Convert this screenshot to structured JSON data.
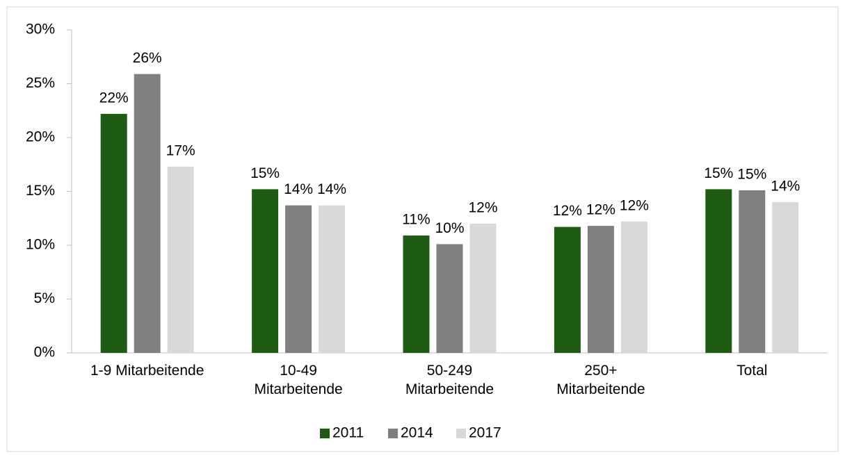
{
  "chart_data": {
    "type": "bar",
    "categories": [
      "1-9 Mitarbeitende",
      "10-49\nMitarbeitende",
      "50-249\nMitarbeitende",
      "250+\nMitarbeitende",
      "Total"
    ],
    "series": [
      {
        "name": "2011",
        "color": "#1e5c14",
        "values": [
          22.2,
          15.2,
          10.9,
          11.7,
          15.2
        ],
        "value_labels": [
          "22%",
          "15%",
          "11%",
          "12%",
          "15%"
        ]
      },
      {
        "name": "2014",
        "color": "#808080",
        "values": [
          25.9,
          13.7,
          10.1,
          11.8,
          15.1
        ],
        "value_labels": [
          "26%",
          "14%",
          "10%",
          "12%",
          "15%"
        ]
      },
      {
        "name": "2017",
        "color": "#d9d9d9",
        "values": [
          17.3,
          13.7,
          12.0,
          12.2,
          14.0
        ],
        "value_labels": [
          "17%",
          "14%",
          "12%",
          "12%",
          "14%"
        ]
      }
    ],
    "ylim": [
      0,
      30
    ],
    "yticks": [
      {
        "value": 0,
        "label": "0%"
      },
      {
        "value": 5,
        "label": "5%"
      },
      {
        "value": 10,
        "label": "10%"
      },
      {
        "value": 15,
        "label": "15%"
      },
      {
        "value": 20,
        "label": "20%"
      },
      {
        "value": 25,
        "label": "25%"
      },
      {
        "value": 30,
        "label": "30%"
      }
    ],
    "legend": "bottom"
  }
}
